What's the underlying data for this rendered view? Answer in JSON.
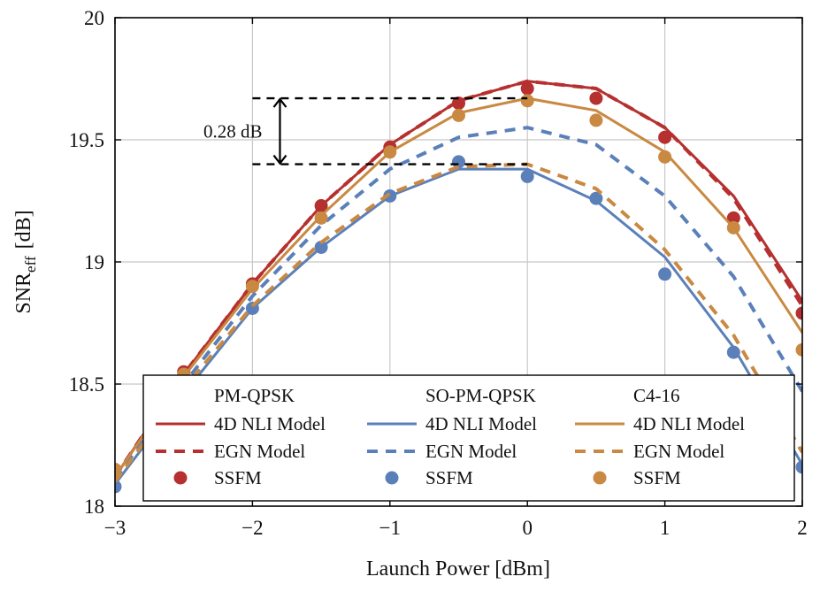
{
  "chart_data": {
    "type": "line",
    "title": "",
    "xlabel": "Launch Power [dBm]",
    "ylabel": "SNR",
    "ylabel_sub": "eff",
    "ylabel_unit": "[dB]",
    "xlim": [
      -3,
      2
    ],
    "ylim": [
      18,
      20
    ],
    "xticks": [
      -3,
      -2,
      -1,
      0,
      1,
      2
    ],
    "xtick_labels": [
      "−3",
      "−2",
      "−1",
      "0",
      "1",
      "2"
    ],
    "yticks": [
      18,
      18.5,
      19,
      19.5,
      20
    ],
    "ytick_labels": [
      "18",
      "18.5",
      "19",
      "19.5",
      "20"
    ],
    "grid": true,
    "legend_position": "bottom",
    "colors": {
      "pm_qpsk": "#b5302e",
      "so_pm_qpsk": "#5b80b9",
      "c4_16": "#c98942"
    },
    "groups": [
      {
        "header": "PM-QPSK",
        "color": "#b5302e",
        "nli_label": "4D NLI Model",
        "egn_label": "EGN Model",
        "ssfm_label": "SSFM"
      },
      {
        "header": "SO-PM-QPSK",
        "color": "#5b80b9",
        "nli_label": "4D NLI Model",
        "egn_label": "EGN Model",
        "ssfm_label": "SSFM"
      },
      {
        "header": "C4-16",
        "color": "#c98942",
        "nli_label": "4D NLI Model",
        "egn_label": "EGN Model",
        "ssfm_label": "SSFM"
      }
    ],
    "x": [
      -3,
      -2.5,
      -2,
      -1.5,
      -1,
      -0.5,
      0,
      0.5,
      1,
      1.5,
      2
    ],
    "series": [
      {
        "group": 0,
        "style": "solid",
        "values": [
          18.12,
          18.54,
          18.91,
          19.23,
          19.48,
          19.66,
          19.74,
          19.71,
          19.55,
          19.27,
          18.84
        ]
      },
      {
        "group": 0,
        "style": "dashed",
        "values": [
          18.12,
          18.54,
          18.91,
          19.23,
          19.48,
          19.66,
          19.74,
          19.71,
          19.55,
          19.26,
          18.82
        ]
      },
      {
        "group": 0,
        "style": "marker",
        "values": [
          18.15,
          18.55,
          18.91,
          19.23,
          19.47,
          19.65,
          19.71,
          19.67,
          19.51,
          19.18,
          18.79
        ]
      },
      {
        "group": 1,
        "style": "solid",
        "values": [
          18.09,
          18.46,
          18.81,
          19.06,
          19.27,
          19.38,
          19.38,
          19.25,
          19.02,
          18.65,
          18.17
        ]
      },
      {
        "group": 1,
        "style": "dashed",
        "values": [
          18.11,
          18.5,
          18.86,
          19.15,
          19.38,
          19.51,
          19.55,
          19.48,
          19.27,
          18.94,
          18.47
        ]
      },
      {
        "group": 1,
        "style": "marker",
        "values": [
          18.08,
          18.48,
          18.81,
          19.06,
          19.27,
          19.41,
          19.35,
          19.26,
          18.95,
          18.63,
          18.16
        ]
      },
      {
        "group": 2,
        "style": "solid",
        "values": [
          18.12,
          18.53,
          18.89,
          19.19,
          19.45,
          19.61,
          19.67,
          19.62,
          19.45,
          19.14,
          18.71
        ]
      },
      {
        "group": 2,
        "style": "dashed",
        "values": [
          18.1,
          18.48,
          18.82,
          19.08,
          19.28,
          19.39,
          19.4,
          19.3,
          19.05,
          18.7,
          18.22
        ]
      },
      {
        "group": 2,
        "style": "marker",
        "values": [
          18.15,
          18.54,
          18.9,
          19.18,
          19.45,
          19.6,
          19.66,
          19.58,
          19.43,
          19.14,
          18.64
        ]
      }
    ],
    "annotation": {
      "text": "0.28 dB",
      "x": -1.8,
      "y_top": 19.67,
      "y_bottom": 19.4,
      "dash_from_x": -2,
      "dash_to_x": 0
    }
  }
}
